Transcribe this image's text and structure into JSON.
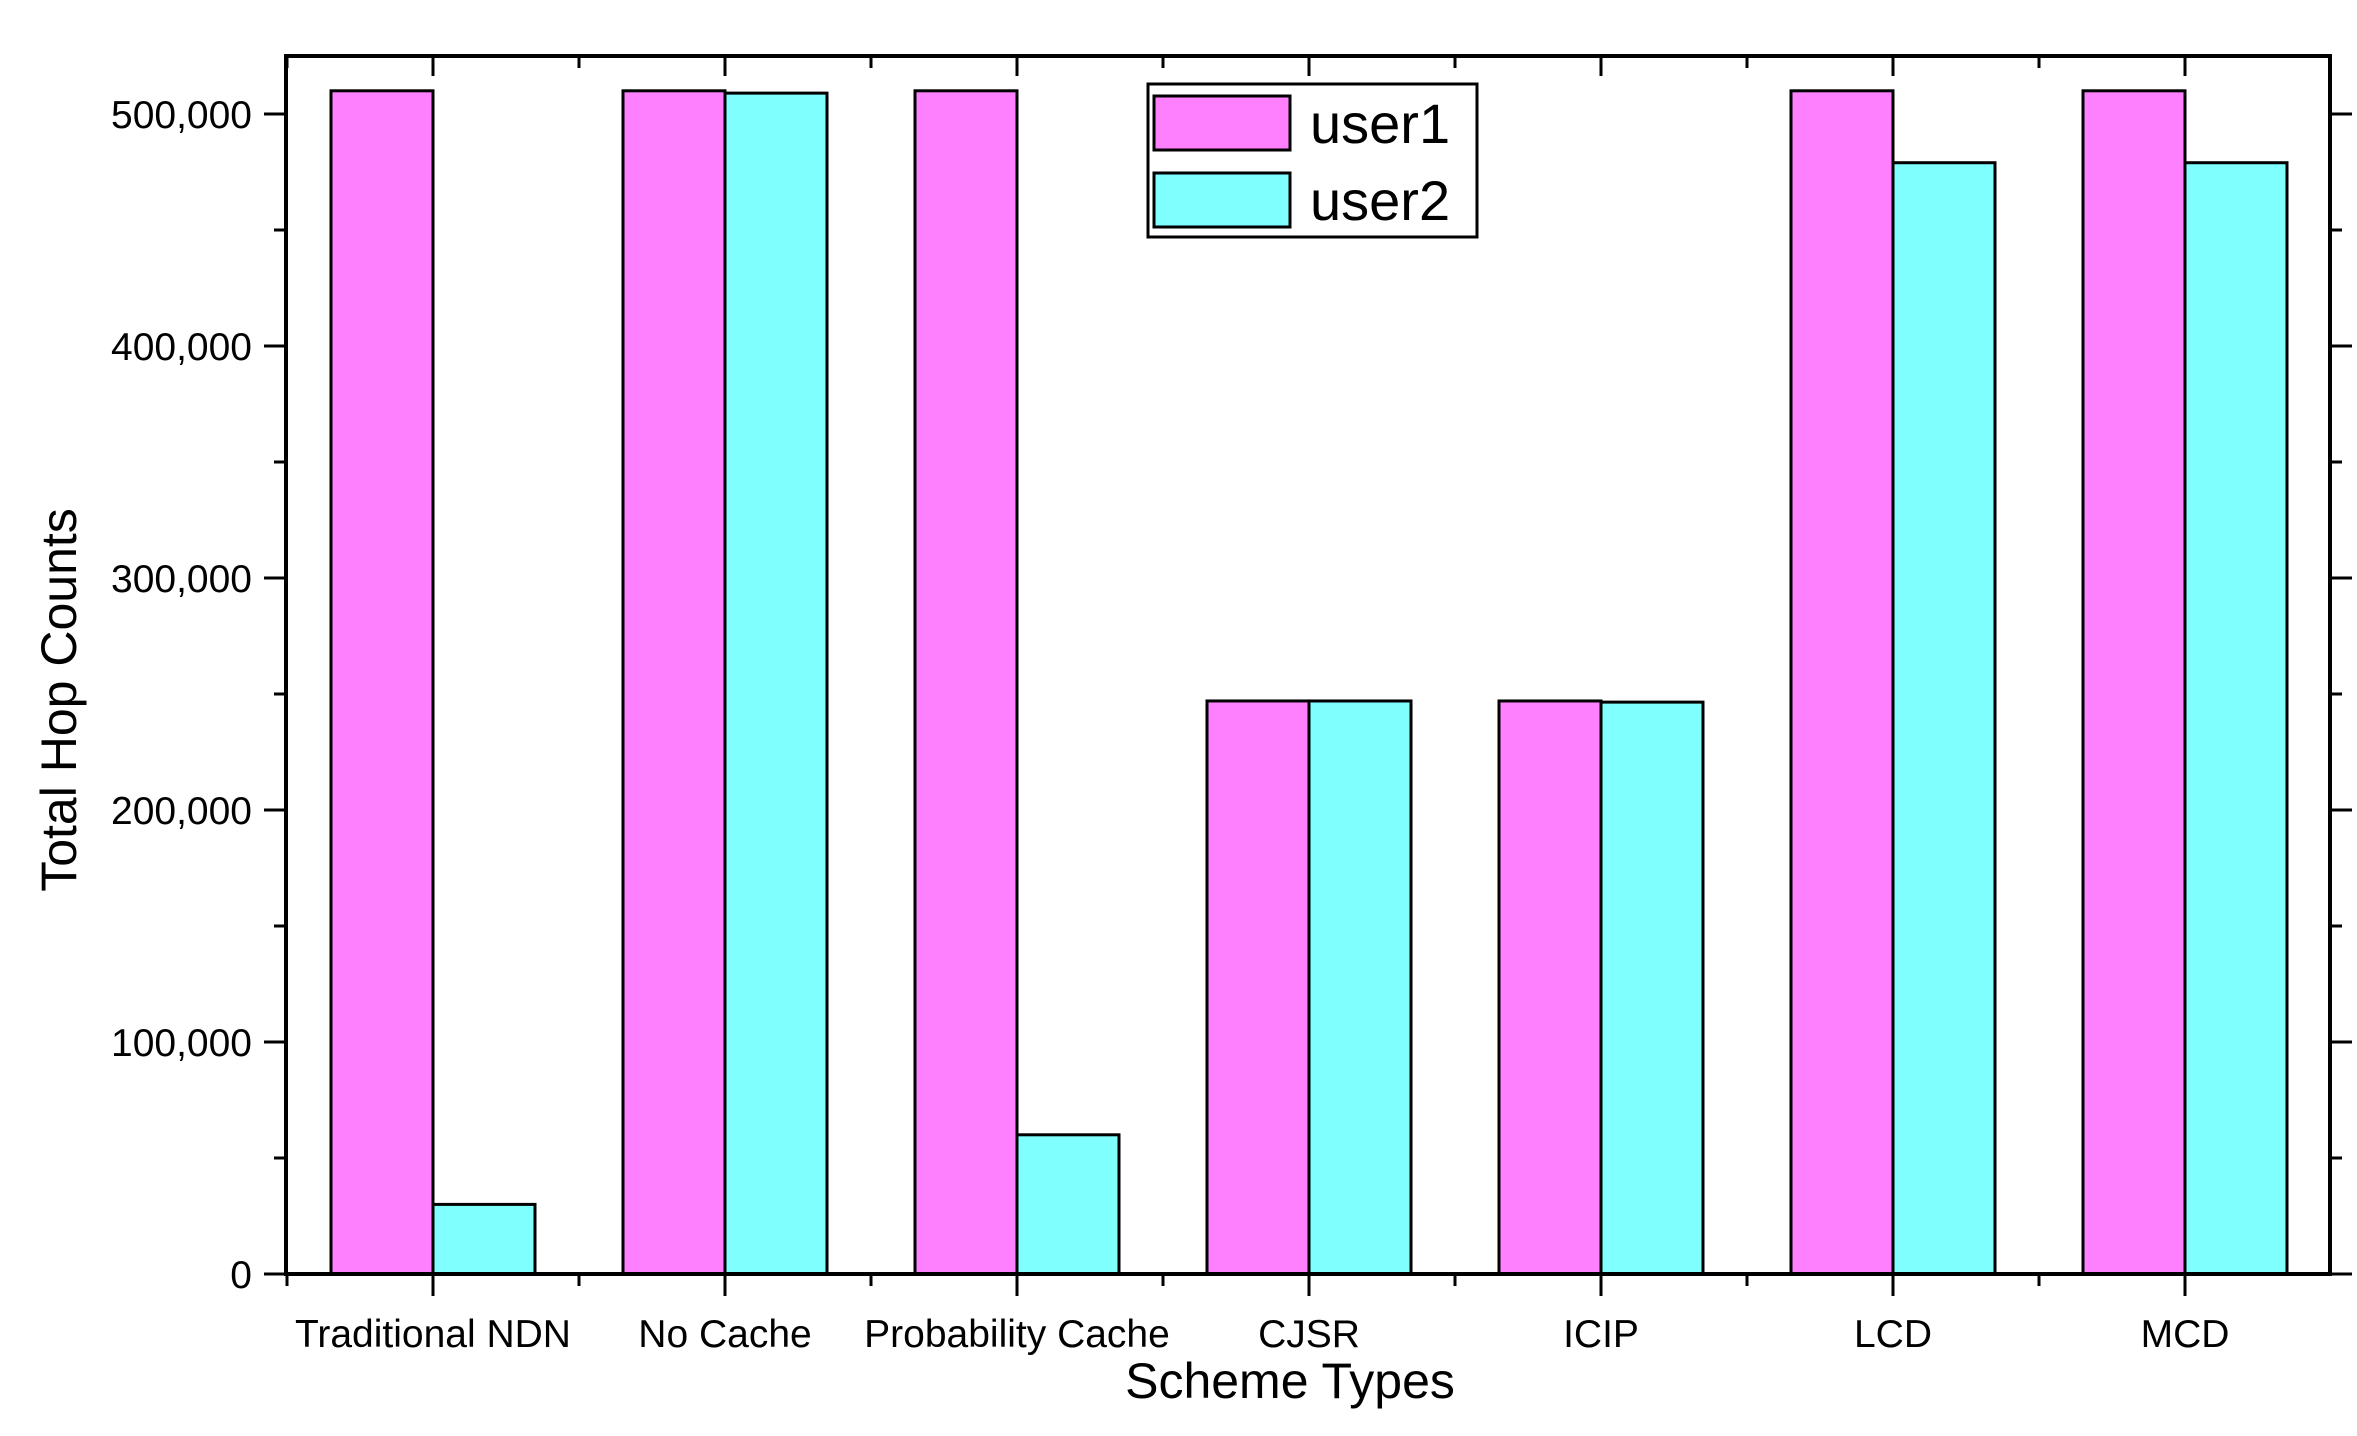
{
  "colors": {
    "user1": "#ff80ff",
    "user2": "#80ffff",
    "axis": "#000000",
    "background": "#ffffff"
  },
  "chart_data": {
    "type": "bar",
    "title": "",
    "xlabel": "Scheme Types",
    "ylabel": "Total Hop Counts",
    "categories": [
      "Traditional NDN",
      "No Cache",
      "Probability Cache",
      "CJSR",
      "ICIP",
      "LCD",
      "MCD"
    ],
    "series": [
      {
        "name": "user1",
        "values": [
          510000,
          510000,
          510000,
          247000,
          247000,
          510000,
          510000
        ]
      },
      {
        "name": "user2",
        "values": [
          30000,
          509000,
          60000,
          247000,
          246500,
          479000,
          479000
        ]
      }
    ],
    "ylim": [
      0,
      525000
    ],
    "yticks": [
      0,
      100000,
      200000,
      300000,
      400000,
      500000
    ],
    "ytick_labels": [
      "0",
      "100,000",
      "200,000",
      "300,000",
      "400,000",
      "500,000"
    ],
    "legend_position": "top-center",
    "grid": false
  }
}
